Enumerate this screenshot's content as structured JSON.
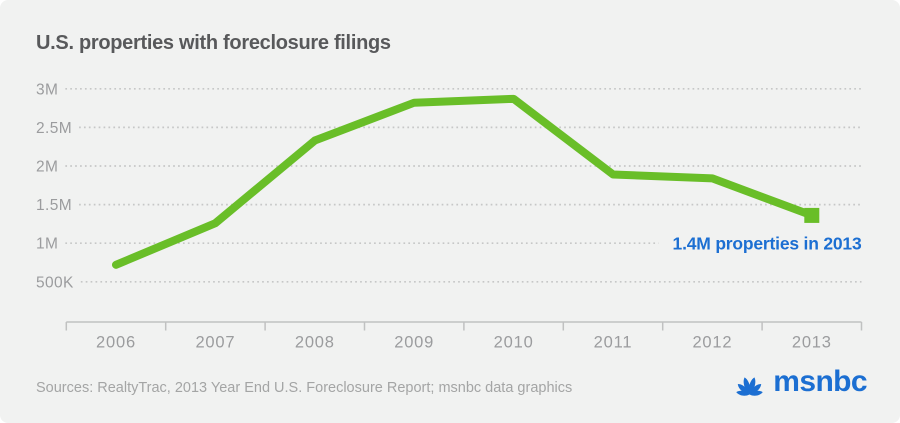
{
  "title": "U.S. properties with foreclosure filings",
  "chart_data": {
    "type": "line",
    "title": "U.S. properties with foreclosure filings",
    "categories": [
      "2006",
      "2007",
      "2008",
      "2009",
      "2010",
      "2011",
      "2012",
      "2013"
    ],
    "series": [
      {
        "name": "U.S. properties with foreclosure filings",
        "values": [
          0.72,
          1.26,
          2.33,
          2.82,
          2.87,
          1.89,
          1.84,
          1.36
        ]
      }
    ],
    "unit": "millions of properties",
    "xlabel": "",
    "ylabel": "",
    "ylim": [
      0,
      3.3
    ],
    "y_ticks": [
      {
        "value": 3,
        "label": "3M"
      },
      {
        "value": 2.5,
        "label": "2.5M"
      },
      {
        "value": 2,
        "label": "2M"
      },
      {
        "value": 1.5,
        "label": "1.5M"
      },
      {
        "value": 1,
        "label": "1M"
      },
      {
        "value": 0.5,
        "label": "500K"
      }
    ],
    "grid": "dotted horizontal",
    "legend": "none",
    "line_color": "#69be28",
    "endpoint_marker": "square",
    "annotation": {
      "text": "1.4M properties in 2013",
      "at_category": "2013",
      "color": "#1c6fd2"
    }
  },
  "footer": {
    "sources": "Sources: RealtyTrac, 2013 Year End U.S. Foreclosure Report; msnbc data graphics"
  },
  "logo": {
    "text": "msnbc",
    "color": "#1c6fd2",
    "icon": "nbc-peacock-icon"
  }
}
